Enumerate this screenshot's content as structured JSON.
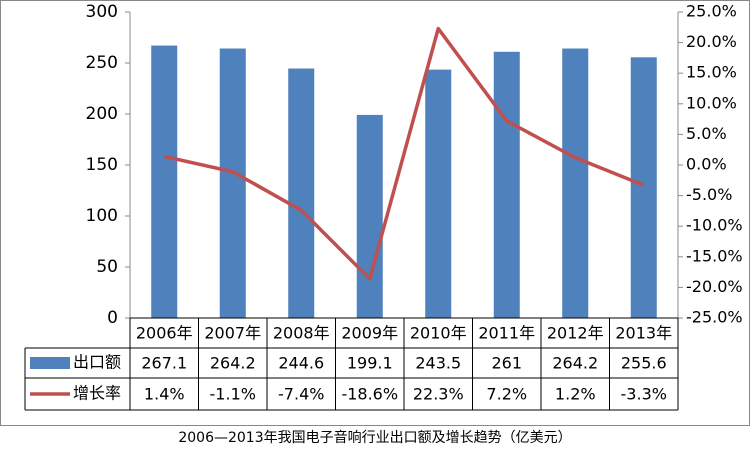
{
  "chart_data": {
    "type": "bar",
    "title": "2006—2013年我国电子音响行业出口额及增长趋势（亿美元）",
    "categories": [
      "2006年",
      "2007年",
      "2008年",
      "2009年",
      "2010年",
      "2011年",
      "2012年",
      "2013年"
    ],
    "series": [
      {
        "name": "出口额",
        "type": "bar",
        "color": "#4f81bd",
        "values": [
          267.1,
          264.2,
          244.6,
          199.1,
          243.5,
          261,
          264.2,
          255.6
        ]
      },
      {
        "name": "增长率",
        "type": "line",
        "axis": "y2",
        "color": "#c0504d",
        "values": [
          1.4,
          -1.1,
          -7.4,
          -18.6,
          22.3,
          7.2,
          1.2,
          -3.3
        ],
        "value_labels": [
          "1.4%",
          "-1.1%",
          "-7.4%",
          "-18.6%",
          "22.3%",
          "7.2%",
          "1.2%",
          "-3.3%"
        ]
      }
    ],
    "ylim": [
      0,
      300
    ],
    "yticks": [
      0,
      50,
      100,
      150,
      200,
      250,
      300
    ],
    "y2lim": [
      -25,
      25
    ],
    "y2ticks": [
      {
        "value": -25,
        "label": "-25.0%"
      },
      {
        "value": -20,
        "label": "-20.0%"
      },
      {
        "value": -15,
        "label": "-15.0%"
      },
      {
        "value": -10,
        "label": "-10.0%"
      },
      {
        "value": -5,
        "label": "-5.0%"
      },
      {
        "value": 0,
        "label": "0.0%"
      },
      {
        "value": 5,
        "label": "5.0%"
      },
      {
        "value": 10,
        "label": "10.0%"
      },
      {
        "value": 15,
        "label": "15.0%"
      },
      {
        "value": 20,
        "label": "20.0%"
      },
      {
        "value": 25,
        "label": "25.0%"
      }
    ],
    "grid": false
  }
}
